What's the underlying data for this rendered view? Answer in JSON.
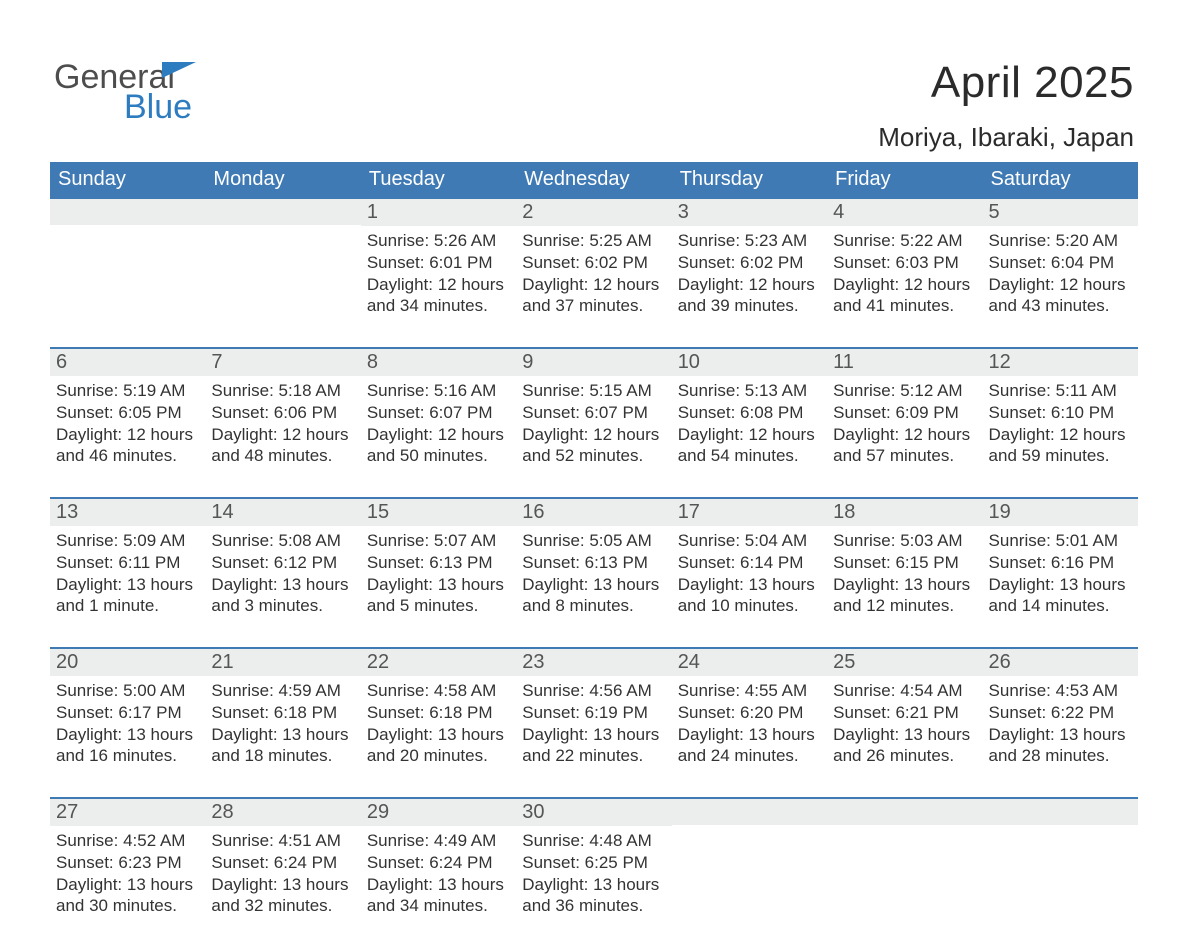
{
  "logo": {
    "word1": "General",
    "word2": "Blue"
  },
  "title": {
    "month": "April 2025",
    "location": "Moriya, Ibaraki, Japan"
  },
  "colors": {
    "header_bg": "#3f7ab5",
    "week_separator": "#3f7ab5",
    "daynum_bg": "#eceded",
    "text": "#333333",
    "title": "#2b2b2b",
    "logo_grey": "#4d4d4d",
    "logo_blue": "#2e7cc0",
    "page_bg": "#ffffff"
  },
  "typography": {
    "month_fontsize": 44,
    "location_fontsize": 26,
    "weekday_fontsize": 20,
    "daynum_fontsize": 20,
    "body_fontsize": 17,
    "logo_fontsize": 34
  },
  "layout": {
    "columns": 7,
    "rows": 5,
    "first_weekday": "Sunday"
  },
  "weekdays": [
    "Sunday",
    "Monday",
    "Tuesday",
    "Wednesday",
    "Thursday",
    "Friday",
    "Saturday"
  ],
  "days": [
    {
      "n": "",
      "sr": "",
      "ss": "",
      "dl": ""
    },
    {
      "n": "",
      "sr": "",
      "ss": "",
      "dl": ""
    },
    {
      "n": "1",
      "sr": "Sunrise: 5:26 AM",
      "ss": "Sunset: 6:01 PM",
      "dl": "Daylight: 12 hours and 34 minutes."
    },
    {
      "n": "2",
      "sr": "Sunrise: 5:25 AM",
      "ss": "Sunset: 6:02 PM",
      "dl": "Daylight: 12 hours and 37 minutes."
    },
    {
      "n": "3",
      "sr": "Sunrise: 5:23 AM",
      "ss": "Sunset: 6:02 PM",
      "dl": "Daylight: 12 hours and 39 minutes."
    },
    {
      "n": "4",
      "sr": "Sunrise: 5:22 AM",
      "ss": "Sunset: 6:03 PM",
      "dl": "Daylight: 12 hours and 41 minutes."
    },
    {
      "n": "5",
      "sr": "Sunrise: 5:20 AM",
      "ss": "Sunset: 6:04 PM",
      "dl": "Daylight: 12 hours and 43 minutes."
    },
    {
      "n": "6",
      "sr": "Sunrise: 5:19 AM",
      "ss": "Sunset: 6:05 PM",
      "dl": "Daylight: 12 hours and 46 minutes."
    },
    {
      "n": "7",
      "sr": "Sunrise: 5:18 AM",
      "ss": "Sunset: 6:06 PM",
      "dl": "Daylight: 12 hours and 48 minutes."
    },
    {
      "n": "8",
      "sr": "Sunrise: 5:16 AM",
      "ss": "Sunset: 6:07 PM",
      "dl": "Daylight: 12 hours and 50 minutes."
    },
    {
      "n": "9",
      "sr": "Sunrise: 5:15 AM",
      "ss": "Sunset: 6:07 PM",
      "dl": "Daylight: 12 hours and 52 minutes."
    },
    {
      "n": "10",
      "sr": "Sunrise: 5:13 AM",
      "ss": "Sunset: 6:08 PM",
      "dl": "Daylight: 12 hours and 54 minutes."
    },
    {
      "n": "11",
      "sr": "Sunrise: 5:12 AM",
      "ss": "Sunset: 6:09 PM",
      "dl": "Daylight: 12 hours and 57 minutes."
    },
    {
      "n": "12",
      "sr": "Sunrise: 5:11 AM",
      "ss": "Sunset: 6:10 PM",
      "dl": "Daylight: 12 hours and 59 minutes."
    },
    {
      "n": "13",
      "sr": "Sunrise: 5:09 AM",
      "ss": "Sunset: 6:11 PM",
      "dl": "Daylight: 13 hours and 1 minute."
    },
    {
      "n": "14",
      "sr": "Sunrise: 5:08 AM",
      "ss": "Sunset: 6:12 PM",
      "dl": "Daylight: 13 hours and 3 minutes."
    },
    {
      "n": "15",
      "sr": "Sunrise: 5:07 AM",
      "ss": "Sunset: 6:13 PM",
      "dl": "Daylight: 13 hours and 5 minutes."
    },
    {
      "n": "16",
      "sr": "Sunrise: 5:05 AM",
      "ss": "Sunset: 6:13 PM",
      "dl": "Daylight: 13 hours and 8 minutes."
    },
    {
      "n": "17",
      "sr": "Sunrise: 5:04 AM",
      "ss": "Sunset: 6:14 PM",
      "dl": "Daylight: 13 hours and 10 minutes."
    },
    {
      "n": "18",
      "sr": "Sunrise: 5:03 AM",
      "ss": "Sunset: 6:15 PM",
      "dl": "Daylight: 13 hours and 12 minutes."
    },
    {
      "n": "19",
      "sr": "Sunrise: 5:01 AM",
      "ss": "Sunset: 6:16 PM",
      "dl": "Daylight: 13 hours and 14 minutes."
    },
    {
      "n": "20",
      "sr": "Sunrise: 5:00 AM",
      "ss": "Sunset: 6:17 PM",
      "dl": "Daylight: 13 hours and 16 minutes."
    },
    {
      "n": "21",
      "sr": "Sunrise: 4:59 AM",
      "ss": "Sunset: 6:18 PM",
      "dl": "Daylight: 13 hours and 18 minutes."
    },
    {
      "n": "22",
      "sr": "Sunrise: 4:58 AM",
      "ss": "Sunset: 6:18 PM",
      "dl": "Daylight: 13 hours and 20 minutes."
    },
    {
      "n": "23",
      "sr": "Sunrise: 4:56 AM",
      "ss": "Sunset: 6:19 PM",
      "dl": "Daylight: 13 hours and 22 minutes."
    },
    {
      "n": "24",
      "sr": "Sunrise: 4:55 AM",
      "ss": "Sunset: 6:20 PM",
      "dl": "Daylight: 13 hours and 24 minutes."
    },
    {
      "n": "25",
      "sr": "Sunrise: 4:54 AM",
      "ss": "Sunset: 6:21 PM",
      "dl": "Daylight: 13 hours and 26 minutes."
    },
    {
      "n": "26",
      "sr": "Sunrise: 4:53 AM",
      "ss": "Sunset: 6:22 PM",
      "dl": "Daylight: 13 hours and 28 minutes."
    },
    {
      "n": "27",
      "sr": "Sunrise: 4:52 AM",
      "ss": "Sunset: 6:23 PM",
      "dl": "Daylight: 13 hours and 30 minutes."
    },
    {
      "n": "28",
      "sr": "Sunrise: 4:51 AM",
      "ss": "Sunset: 6:24 PM",
      "dl": "Daylight: 13 hours and 32 minutes."
    },
    {
      "n": "29",
      "sr": "Sunrise: 4:49 AM",
      "ss": "Sunset: 6:24 PM",
      "dl": "Daylight: 13 hours and 34 minutes."
    },
    {
      "n": "30",
      "sr": "Sunrise: 4:48 AM",
      "ss": "Sunset: 6:25 PM",
      "dl": "Daylight: 13 hours and 36 minutes."
    },
    {
      "n": "",
      "sr": "",
      "ss": "",
      "dl": ""
    },
    {
      "n": "",
      "sr": "",
      "ss": "",
      "dl": ""
    },
    {
      "n": "",
      "sr": "",
      "ss": "",
      "dl": ""
    }
  ]
}
